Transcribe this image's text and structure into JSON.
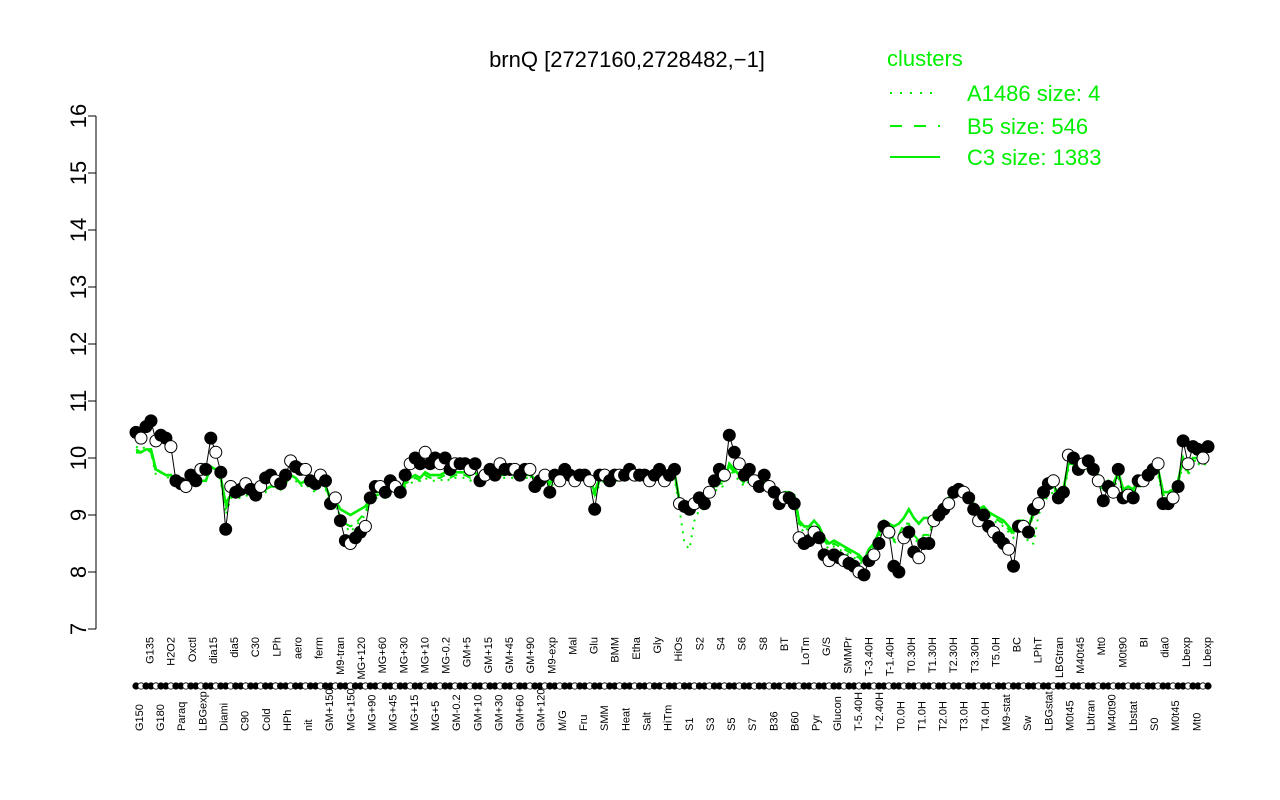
{
  "chart_data": {
    "type": "line",
    "title": "brnQ [2727160,2728482,−1]",
    "xlabel": "",
    "ylabel": "",
    "ylim": [
      7,
      16
    ],
    "yticks": [
      "7",
      "8",
      "9",
      "10",
      "11",
      "12",
      "13",
      "14",
      "15",
      "16"
    ],
    "grid": false,
    "legend": {
      "title": "clusters",
      "position": "top-right",
      "color": "#00ee00",
      "entries": [
        {
          "label": "A1486 size: 4",
          "style": "dotted"
        },
        {
          "label": "B5 size: 546",
          "style": "dashed"
        },
        {
          "label": "C3 size: 1383",
          "style": "solid"
        }
      ]
    },
    "x_tick_labels": [
      "G150",
      "G135",
      "G180",
      "H2O2",
      "Paraq",
      "Oxctl",
      "LBGexp",
      "dia15",
      "Diami",
      "dia5",
      "C90",
      "C30",
      "Cold",
      "LPh",
      "HPh",
      "aero",
      "nit",
      "ferm",
      "GM+150",
      "M9-tran",
      "MG+150",
      "MG+120",
      "MG+90",
      "MG+60",
      "MG+45",
      "MG+30",
      "MG+15",
      "MG+10",
      "MG+5",
      "MG-0.2",
      "GM-0.2",
      "GM+5",
      "GM+10",
      "GM+15",
      "GM+30",
      "GM+45",
      "GM+60",
      "GM+90",
      "GM+120",
      "M9-exp",
      "M/G",
      "Mal",
      "Fru",
      "Glu",
      "SMM",
      "BMM",
      "Heat",
      "Etha",
      "Salt",
      "Gly",
      "HiTm",
      "HiOs",
      "S1",
      "S2",
      "S3",
      "S4",
      "S5",
      "S6",
      "S7",
      "S8",
      "B36",
      "BT",
      "B60",
      "LoTm",
      "Pyr",
      "G/S",
      "Glucon",
      "SMMPr",
      "T-5.40H",
      "T-3.40H",
      "T-2.40H",
      "T-1.40H",
      "T0.0H",
      "T0.30H",
      "T1.0H",
      "T1.30H",
      "T2.0H",
      "T2.30H",
      "T3.0H",
      "T3.30H",
      "T4.0H",
      "T5.0H",
      "M9-stat",
      "BC",
      "Sw",
      "LPhT",
      "LBGstat",
      "LBGtran",
      "M0t45",
      "M40t45",
      "Lbtran",
      "Mt0",
      "M40t90",
      "M0t90",
      "Lbstat",
      "BI",
      "S0",
      "dia0",
      "M0t45",
      "Lbexp",
      "Mt0",
      "Lbexp"
    ],
    "profile_values": [
      10.45,
      10.35,
      10.55,
      10.65,
      10.3,
      10.4,
      10.35,
      10.2,
      9.6,
      9.55,
      9.5,
      9.7,
      9.6,
      9.8,
      9.8,
      10.35,
      10.1,
      9.75,
      8.75,
      9.5,
      9.4,
      9.45,
      9.55,
      9.45,
      9.35,
      9.5,
      9.65,
      9.7,
      9.6,
      9.55,
      9.7,
      9.95,
      9.85,
      9.8,
      9.8,
      9.6,
      9.55,
      9.7,
      9.6,
      9.2,
      9.3,
      8.9,
      8.55,
      8.5,
      8.6,
      8.7,
      8.8,
      9.3,
      9.5,
      9.5,
      9.4,
      9.6,
      9.5,
      9.4,
      9.7,
      9.9,
      10.0,
      9.9,
      10.1,
      9.9,
      10.0,
      9.9,
      10.0,
      9.8,
      9.9,
      9.9,
      9.9,
      9.8,
      9.9,
      9.6,
      9.7,
      9.8,
      9.7,
      9.9,
      9.8,
      9.8,
      9.8,
      9.7,
      9.8,
      9.8,
      9.5,
      9.6,
      9.7,
      9.4,
      9.7,
      9.6,
      9.8,
      9.7,
      9.6,
      9.7,
      9.7,
      9.6,
      9.1,
      9.7,
      9.7,
      9.6,
      9.7,
      9.7,
      9.7,
      9.8,
      9.7,
      9.7,
      9.7,
      9.6,
      9.7,
      9.8,
      9.6,
      9.7,
      9.8,
      9.2,
      9.15,
      9.1,
      9.2,
      9.3,
      9.2,
      9.4,
      9.6,
      9.8,
      9.7,
      10.4,
      10.1,
      9.9,
      9.7,
      9.8,
      9.6,
      9.5,
      9.7,
      9.5,
      9.4,
      9.2,
      9.3,
      9.3,
      9.2,
      8.6,
      8.5,
      8.55,
      8.7,
      8.6,
      8.3,
      8.2,
      8.3,
      8.25,
      8.2,
      8.15,
      8.1,
      8.0,
      7.95,
      8.2,
      8.3,
      8.5,
      8.8,
      8.7,
      8.1,
      8.0,
      8.6,
      8.7,
      8.35,
      8.25,
      8.5,
      8.5,
      8.9,
      9.0,
      9.1,
      9.2,
      9.4,
      9.45,
      9.4,
      9.3,
      9.1,
      8.9,
      9.0,
      8.8,
      8.7,
      8.6,
      8.5,
      8.4,
      8.1,
      8.8,
      8.8,
      8.7,
      9.1,
      9.2,
      9.4,
      9.55,
      9.6,
      9.3,
      9.4,
      10.05,
      10.0,
      9.8,
      9.9,
      9.95,
      9.8,
      9.6,
      9.25,
      9.5,
      9.4,
      9.8,
      9.3,
      9.35,
      9.3,
      9.6,
      9.6,
      9.7,
      9.8,
      9.9,
      9.2,
      9.2,
      9.3,
      9.5,
      10.3,
      9.9,
      10.2,
      10.15,
      10.0,
      10.2
    ],
    "series": [
      {
        "name": "A1486 size: 4",
        "style": "dotted",
        "color": "#00ee00",
        "values": [
          10.2,
          10.15,
          10.2,
          10.1,
          9.7,
          9.75,
          9.7,
          9.6,
          9.5,
          9.55,
          9.5,
          9.5,
          9.55,
          9.6,
          9.6,
          9.8,
          9.8,
          9.6,
          9.0,
          9.3,
          9.3,
          9.3,
          9.35,
          9.3,
          9.25,
          9.35,
          9.4,
          9.5,
          9.5,
          9.45,
          9.55,
          9.65,
          9.6,
          9.5,
          9.55,
          9.45,
          9.4,
          9.5,
          9.45,
          9.2,
          9.2,
          8.9,
          8.8,
          8.7,
          8.8,
          8.9,
          9.0,
          9.2,
          9.3,
          9.3,
          9.3,
          9.4,
          9.35,
          9.3,
          9.5,
          9.55,
          9.6,
          9.6,
          9.65,
          9.6,
          9.6,
          9.6,
          9.65,
          9.6,
          9.65,
          9.65,
          9.65,
          9.6,
          9.65,
          9.55,
          9.6,
          9.65,
          9.6,
          9.65,
          9.65,
          9.65,
          9.65,
          9.6,
          9.65,
          9.65,
          9.5,
          9.55,
          9.6,
          9.45,
          9.6,
          9.55,
          9.65,
          9.6,
          9.55,
          9.6,
          9.6,
          9.55,
          9.3,
          9.55,
          9.6,
          9.55,
          9.6,
          9.6,
          9.6,
          9.65,
          9.6,
          9.6,
          9.6,
          9.55,
          9.6,
          9.65,
          9.55,
          9.6,
          9.65,
          9.1,
          8.5,
          8.4,
          8.9,
          9.1,
          9.1,
          9.3,
          9.4,
          9.5,
          9.5,
          9.8,
          9.7,
          9.6,
          9.5,
          9.6,
          9.5,
          9.45,
          9.5,
          9.4,
          9.35,
          9.2,
          9.3,
          9.3,
          9.3,
          8.8,
          8.7,
          8.7,
          8.8,
          8.7,
          8.5,
          8.4,
          8.45,
          8.4,
          8.35,
          8.3,
          8.25,
          8.2,
          8.1,
          8.3,
          8.4,
          8.6,
          8.8,
          8.75,
          8.5,
          8.6,
          8.8,
          8.8,
          8.6,
          8.5,
          8.6,
          8.6,
          8.9,
          9.0,
          9.1,
          9.2,
          9.3,
          9.35,
          9.3,
          9.25,
          9.1,
          9.0,
          9.05,
          8.95,
          8.9,
          8.85,
          8.8,
          8.7,
          8.6,
          8.8,
          8.8,
          8.5,
          8.5,
          9.0,
          9.2,
          9.35,
          9.4,
          9.3,
          9.35,
          9.8,
          9.8,
          9.7,
          9.75,
          9.8,
          9.7,
          9.6,
          9.4,
          9.5,
          9.45,
          9.65,
          9.35,
          9.4,
          9.35,
          9.5,
          9.5,
          9.55,
          9.65,
          9.7,
          9.3,
          9.3,
          9.35,
          9.5,
          9.9,
          9.7,
          9.9,
          9.9,
          9.85,
          9.95
        ]
      },
      {
        "name": "B5 size: 546",
        "style": "dashed",
        "color": "#00ee00",
        "values": [
          10.15,
          10.1,
          10.15,
          10.1,
          9.75,
          9.75,
          9.7,
          9.65,
          9.55,
          9.55,
          9.55,
          9.55,
          9.55,
          9.6,
          9.6,
          9.85,
          9.8,
          9.65,
          9.1,
          9.35,
          9.35,
          9.35,
          9.4,
          9.35,
          9.3,
          9.4,
          9.45,
          9.5,
          9.5,
          9.45,
          9.55,
          9.7,
          9.65,
          9.55,
          9.6,
          9.5,
          9.45,
          9.55,
          9.5,
          9.25,
          9.25,
          8.95,
          8.85,
          8.8,
          8.85,
          8.95,
          9.05,
          9.25,
          9.35,
          9.35,
          9.35,
          9.45,
          9.4,
          9.35,
          9.55,
          9.6,
          9.65,
          9.6,
          9.7,
          9.65,
          9.65,
          9.65,
          9.7,
          9.65,
          9.7,
          9.7,
          9.7,
          9.65,
          9.7,
          9.6,
          9.65,
          9.7,
          9.65,
          9.7,
          9.7,
          9.7,
          9.7,
          9.65,
          9.7,
          9.7,
          9.55,
          9.6,
          9.65,
          9.5,
          9.65,
          9.6,
          9.7,
          9.65,
          9.6,
          9.65,
          9.65,
          9.6,
          9.35,
          9.6,
          9.65,
          9.6,
          9.65,
          9.65,
          9.65,
          9.7,
          9.65,
          9.65,
          9.65,
          9.6,
          9.65,
          9.7,
          9.6,
          9.65,
          9.7,
          9.2,
          9.15,
          9.15,
          9.2,
          9.25,
          9.2,
          9.35,
          9.45,
          9.55,
          9.55,
          9.85,
          9.75,
          9.65,
          9.55,
          9.65,
          9.55,
          9.5,
          9.55,
          9.45,
          9.4,
          9.25,
          9.35,
          9.35,
          9.3,
          8.85,
          8.75,
          8.75,
          8.85,
          8.75,
          8.55,
          8.45,
          8.5,
          8.45,
          8.4,
          8.35,
          8.3,
          8.25,
          8.15,
          8.35,
          8.45,
          8.65,
          8.85,
          8.8,
          8.55,
          8.65,
          8.85,
          8.85,
          8.65,
          8.55,
          8.65,
          8.65,
          8.95,
          9.05,
          9.15,
          9.25,
          9.35,
          9.4,
          9.35,
          9.3,
          9.15,
          9.05,
          9.1,
          9.0,
          8.95,
          8.9,
          8.85,
          8.75,
          8.65,
          8.85,
          8.85,
          8.75,
          9.0,
          9.1,
          9.25,
          9.4,
          9.45,
          9.35,
          9.4,
          9.85,
          9.85,
          9.75,
          9.8,
          9.85,
          9.75,
          9.65,
          9.45,
          9.55,
          9.5,
          9.7,
          9.4,
          9.45,
          9.4,
          9.55,
          9.55,
          9.6,
          9.7,
          9.75,
          9.35,
          9.35,
          9.4,
          9.55,
          9.95,
          9.75,
          9.95,
          9.95,
          9.9,
          10.0
        ]
      },
      {
        "name": "C3 size: 1383",
        "style": "solid",
        "color": "#00ee00",
        "values": [
          10.1,
          10.1,
          10.15,
          10.15,
          9.8,
          9.75,
          9.7,
          9.7,
          9.55,
          9.55,
          9.55,
          9.55,
          9.55,
          9.6,
          9.6,
          9.85,
          9.8,
          9.65,
          9.2,
          9.35,
          9.35,
          9.35,
          9.4,
          9.35,
          9.3,
          9.4,
          9.45,
          9.5,
          9.5,
          9.45,
          9.55,
          9.7,
          9.65,
          9.55,
          9.6,
          9.5,
          9.45,
          9.55,
          9.5,
          9.3,
          9.25,
          9.1,
          9.05,
          9.0,
          9.05,
          9.1,
          9.15,
          9.3,
          9.4,
          9.4,
          9.4,
          9.5,
          9.45,
          9.4,
          9.6,
          9.65,
          9.7,
          9.65,
          9.75,
          9.7,
          9.7,
          9.7,
          9.75,
          9.7,
          9.75,
          9.75,
          9.75,
          9.7,
          9.75,
          9.65,
          9.7,
          9.75,
          9.7,
          9.75,
          9.75,
          9.75,
          9.75,
          9.7,
          9.75,
          9.75,
          9.6,
          9.65,
          9.7,
          9.55,
          9.7,
          9.65,
          9.75,
          9.7,
          9.65,
          9.7,
          9.7,
          9.65,
          9.4,
          9.65,
          9.7,
          9.65,
          9.7,
          9.7,
          9.7,
          9.75,
          9.7,
          9.7,
          9.7,
          9.65,
          9.7,
          9.75,
          9.65,
          9.7,
          9.75,
          9.25,
          9.2,
          9.2,
          9.25,
          9.3,
          9.25,
          9.4,
          9.5,
          9.6,
          9.6,
          9.9,
          9.8,
          9.7,
          9.6,
          9.7,
          9.6,
          9.55,
          9.6,
          9.5,
          9.45,
          9.3,
          9.4,
          9.4,
          9.35,
          8.9,
          8.8,
          8.8,
          8.9,
          8.8,
          8.6,
          8.5,
          8.55,
          8.5,
          8.45,
          8.4,
          8.35,
          8.3,
          8.2,
          8.4,
          8.5,
          8.7,
          8.9,
          8.85,
          8.8,
          8.85,
          8.95,
          9.1,
          8.95,
          8.85,
          8.95,
          8.95,
          9.0,
          9.1,
          9.2,
          9.3,
          9.4,
          9.45,
          9.4,
          9.35,
          9.2,
          9.1,
          9.15,
          9.05,
          9.0,
          8.95,
          8.9,
          8.8,
          8.7,
          8.9,
          8.9,
          8.8,
          9.05,
          9.15,
          9.3,
          9.45,
          9.5,
          9.4,
          9.45,
          9.9,
          9.9,
          9.8,
          9.85,
          9.9,
          9.8,
          9.7,
          9.5,
          9.6,
          9.55,
          9.75,
          9.45,
          9.5,
          9.45,
          9.6,
          9.6,
          9.65,
          9.75,
          9.8,
          9.4,
          9.4,
          9.45,
          9.6,
          10.0,
          9.8,
          10.0,
          10.0,
          9.95,
          10.05
        ]
      }
    ]
  }
}
